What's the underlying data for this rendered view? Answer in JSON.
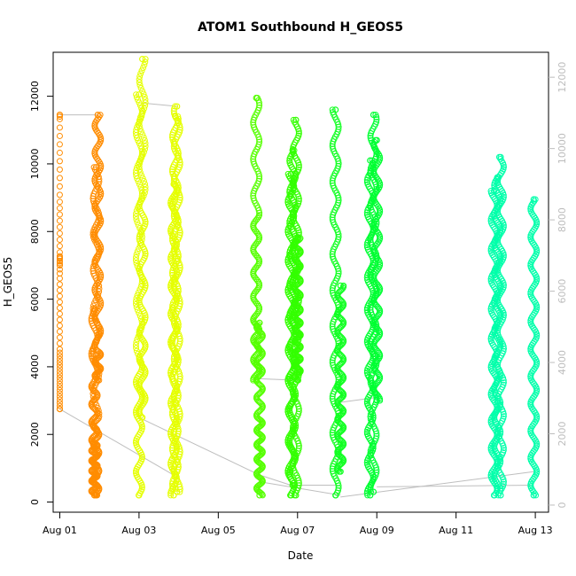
{
  "chart_data": {
    "type": "scatter",
    "title": "ATOM1 Southbound H_GEOS5",
    "xlabel": "Date",
    "ylabel": "H_GEOS5",
    "xlim": [
      "2016-07-31T20:00",
      "2016-08-13T08:00"
    ],
    "ylim": [
      -300,
      13300
    ],
    "ylim_right": [
      -200,
      12700
    ],
    "x_ticks": [
      {
        "value": "2016-08-01T00:00",
        "label": "Aug 01"
      },
      {
        "value": "2016-08-03T00:00",
        "label": "Aug 03"
      },
      {
        "value": "2016-08-05T00:00",
        "label": "Aug 05"
      },
      {
        "value": "2016-08-07T00:00",
        "label": "Aug 07"
      },
      {
        "value": "2016-08-09T00:00",
        "label": "Aug 09"
      },
      {
        "value": "2016-08-11T00:00",
        "label": "Aug 11"
      },
      {
        "value": "2016-08-13T00:00",
        "label": "Aug 13"
      }
    ],
    "y_ticks": [
      0,
      2000,
      4000,
      6000,
      8000,
      10000,
      12000
    ],
    "y_ticks_right": [
      0,
      2000,
      4000,
      6000,
      8000,
      10000,
      12000
    ],
    "grid": false,
    "legend": "none",
    "marker": "open-circle",
    "colors": {
      "connector_line": "#bebebe",
      "axis": "#000000",
      "right_axis": "#bdbdbd",
      "background": "#ffffff"
    },
    "series": [
      {
        "time": "2016-08-01T00:00",
        "color": "#FF8C00",
        "profile": [
          [
            0,
            11450
          ],
          [
            0.03,
            11350
          ],
          [
            0.18,
            9000
          ],
          [
            0.35,
            7000
          ],
          [
            0.42,
            7300
          ],
          [
            0.5,
            6700
          ],
          [
            0.7,
            4500
          ],
          [
            1,
            2750
          ]
        ],
        "ymin": 2750,
        "ymax": 11450,
        "dense": false
      },
      {
        "time": "2016-08-01T21:00",
        "color": "#FF8C00",
        "profile": [
          [
            0,
            5700
          ],
          [
            0.2,
            3500
          ],
          [
            0.5,
            1800
          ],
          [
            1,
            200
          ]
        ],
        "ymin": 200,
        "ymax": 5700,
        "dense": true
      },
      {
        "time": "2016-08-01T22:00",
        "color": "#FF8C00",
        "profile": [
          [
            0,
            200
          ],
          [
            0.4,
            2500
          ],
          [
            0.7,
            6500
          ],
          [
            1,
            9900
          ]
        ],
        "ymin": 200,
        "ymax": 9900,
        "dense": true
      },
      {
        "time": "2016-08-01T23:00",
        "color": "#FF8C00",
        "profile": [
          [
            0,
            11450
          ],
          [
            0.4,
            8000
          ],
          [
            0.8,
            4500
          ],
          [
            1,
            3600
          ]
        ],
        "ymin": 3600,
        "ymax": 11450,
        "dense": true
      },
      {
        "time": "2016-08-03T00:00",
        "color": "#E5FF00",
        "profile": [
          [
            0,
            12050
          ],
          [
            0.2,
            9500
          ],
          [
            0.6,
            4000
          ],
          [
            1,
            200
          ]
        ],
        "ymin": 200,
        "ymax": 12050,
        "dense": true
      },
      {
        "time": "2016-08-03T02:00",
        "color": "#E5FF00",
        "profile": [
          [
            0,
            13100
          ],
          [
            0.3,
            9000
          ],
          [
            0.7,
            5000
          ],
          [
            1,
            2500
          ]
        ],
        "ymin": 2500,
        "ymax": 13100,
        "dense": true
      },
      {
        "time": "2016-08-03T21:00",
        "color": "#E5FF00",
        "profile": [
          [
            0,
            200
          ],
          [
            0.5,
            5000
          ],
          [
            1,
            9400
          ]
        ],
        "ymin": 200,
        "ymax": 9400,
        "dense": true
      },
      {
        "time": "2016-08-03T22:00",
        "color": "#E5FF00",
        "profile": [
          [
            0,
            11400
          ],
          [
            0.5,
            6000
          ],
          [
            1,
            400
          ]
        ],
        "ymin": 400,
        "ymax": 11400,
        "dense": true
      },
      {
        "time": "2016-08-03T23:00",
        "color": "#E5FF00",
        "profile": [
          [
            0,
            11700
          ],
          [
            0.5,
            6200
          ],
          [
            1,
            300
          ]
        ],
        "ymin": 300,
        "ymax": 11700,
        "dense": true
      },
      {
        "time": "2016-08-05T23:00",
        "color": "#55FF00",
        "profile": [
          [
            0,
            11950
          ],
          [
            0.3,
            8500
          ],
          [
            0.7,
            5500
          ],
          [
            1,
            3600
          ]
        ],
        "ymin": 3600,
        "ymax": 11950,
        "dense": true
      },
      {
        "time": "2016-08-06T01:00",
        "color": "#55FF00",
        "profile": [
          [
            0,
            5300
          ],
          [
            0.5,
            2500
          ],
          [
            1,
            200
          ]
        ],
        "ymin": 200,
        "ymax": 5300,
        "dense": true
      },
      {
        "time": "2016-08-06T20:00",
        "color": "#33FF00",
        "profile": [
          [
            0,
            200
          ],
          [
            0.5,
            5000
          ],
          [
            1,
            9700
          ]
        ],
        "ymin": 200,
        "ymax": 9700,
        "dense": true
      },
      {
        "time": "2016-08-06T21:00",
        "color": "#33FF00",
        "profile": [
          [
            0,
            10400
          ],
          [
            0.5,
            5500
          ],
          [
            1,
            500
          ]
        ],
        "ymin": 500,
        "ymax": 10400,
        "dense": true
      },
      {
        "time": "2016-08-06T23:00",
        "color": "#33FF00",
        "profile": [
          [
            0,
            11300
          ],
          [
            0.5,
            6000
          ],
          [
            1,
            200
          ]
        ],
        "ymin": 200,
        "ymax": 11300,
        "dense": true
      },
      {
        "time": "2016-08-07T00:00",
        "color": "#33FF00",
        "profile": [
          [
            0,
            7800
          ],
          [
            0.5,
            5500
          ],
          [
            1,
            3600
          ]
        ],
        "ymin": 3600,
        "ymax": 7800,
        "dense": true
      },
      {
        "time": "2016-08-07T23:00",
        "color": "#11FF22",
        "profile": [
          [
            0,
            11600
          ],
          [
            0.4,
            7000
          ],
          [
            1,
            200
          ]
        ],
        "ymin": 200,
        "ymax": 11600,
        "dense": true
      },
      {
        "time": "2016-08-08T02:00",
        "color": "#11FF22",
        "profile": [
          [
            0,
            6400
          ],
          [
            0.5,
            3500
          ],
          [
            1,
            900
          ]
        ],
        "ymin": 900,
        "ymax": 6400,
        "dense": true
      },
      {
        "time": "2016-08-08T20:00",
        "color": "#00FF33",
        "profile": [
          [
            0,
            200
          ],
          [
            0.5,
            5000
          ],
          [
            1,
            10100
          ]
        ],
        "ymin": 200,
        "ymax": 10100,
        "dense": true
      },
      {
        "time": "2016-08-08T22:00",
        "color": "#00FF33",
        "profile": [
          [
            0,
            11450
          ],
          [
            0.5,
            6000
          ],
          [
            1,
            300
          ]
        ],
        "ymin": 300,
        "ymax": 11450,
        "dense": true
      },
      {
        "time": "2016-08-09T00:00",
        "color": "#00FF33",
        "profile": [
          [
            0,
            10700
          ],
          [
            0.5,
            6500
          ],
          [
            1,
            3000
          ]
        ],
        "ymin": 3000,
        "ymax": 10700,
        "dense": true
      },
      {
        "time": "2016-08-11T23:00",
        "color": "#00FFAA",
        "profile": [
          [
            0,
            200
          ],
          [
            0.5,
            4500
          ],
          [
            1,
            9200
          ]
        ],
        "ymin": 200,
        "ymax": 9200,
        "dense": true
      },
      {
        "time": "2016-08-12T01:00",
        "color": "#00FFAA",
        "profile": [
          [
            0,
            9600
          ],
          [
            0.5,
            5000
          ],
          [
            1,
            400
          ]
        ],
        "ymin": 400,
        "ymax": 9600,
        "dense": true
      },
      {
        "time": "2016-08-12T03:00",
        "color": "#00FFAA",
        "profile": [
          [
            0,
            10200
          ],
          [
            0.5,
            5500
          ],
          [
            1,
            200
          ]
        ],
        "ymin": 200,
        "ymax": 10200,
        "dense": true
      },
      {
        "time": "2016-08-12T23:00",
        "color": "#00FFAA",
        "profile": [
          [
            0,
            200
          ],
          [
            0.5,
            4500
          ],
          [
            1,
            8950
          ]
        ],
        "ymin": 200,
        "ymax": 8950,
        "dense": true
      }
    ],
    "connectors": [
      [
        [
          "2016-08-01T00:00",
          11450
        ],
        [
          "2016-08-01T23:00",
          11450
        ]
      ],
      [
        [
          "2016-08-01T00:00",
          2750
        ],
        [
          "2016-08-03T21:00",
          800
        ]
      ],
      [
        [
          "2016-08-03T00:00",
          2500
        ],
        [
          "2016-08-06T01:00",
          800
        ]
      ],
      [
        [
          "2016-08-03T02:00",
          11800
        ],
        [
          "2016-08-03T23:00",
          11700
        ]
      ],
      [
        [
          "2016-08-06T01:00",
          800
        ],
        [
          "2016-08-07T02:00",
          400
        ]
      ],
      [
        [
          "2016-08-05T23:00",
          3650
        ],
        [
          "2016-08-07T00:00",
          3600
        ]
      ],
      [
        [
          "2016-08-06T01:00",
          600
        ],
        [
          "2016-08-08T02:00",
          200
        ]
      ],
      [
        [
          "2016-08-06T21:00",
          500
        ],
        [
          "2016-08-08T00:00",
          500
        ]
      ],
      [
        [
          "2016-08-08T02:00",
          2950
        ],
        [
          "2016-08-09T01:00",
          3100
        ]
      ],
      [
        [
          "2016-08-08T02:00",
          150
        ],
        [
          "2016-08-12T23:00",
          900
        ]
      ],
      [
        [
          "2016-08-09T00:00",
          450
        ],
        [
          "2016-08-12T23:00",
          500
        ]
      ]
    ]
  }
}
